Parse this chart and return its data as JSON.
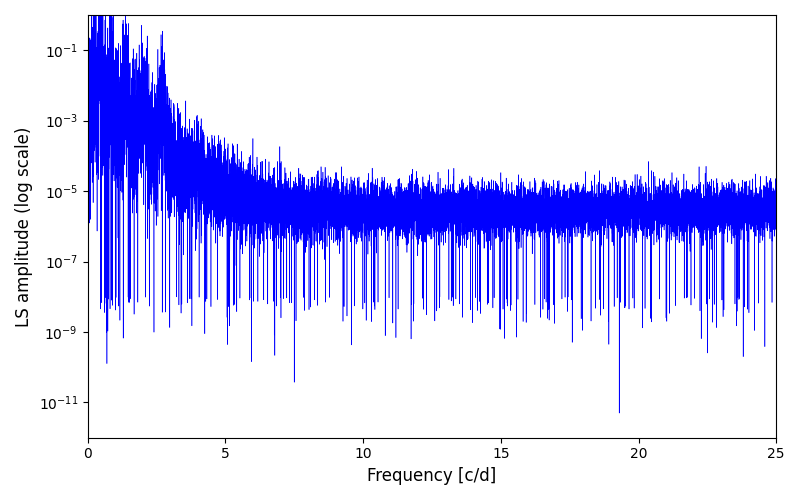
{
  "title": "",
  "xlabel": "Frequency [c/d]",
  "ylabel": "LS amplitude (log scale)",
  "line_color": "#0000ff",
  "xlim": [
    0,
    25
  ],
  "ylim_log": [
    -12,
    0
  ],
  "freq_max": 25.0,
  "n_points": 15000,
  "seed": 12345,
  "noise_floor_high": 3e-06,
  "noise_floor_low": 5e-06,
  "decay_rate": 1.2,
  "yticks": [
    1e-11,
    1e-09,
    1e-07,
    1e-05,
    0.001,
    0.1
  ],
  "xticks": [
    0,
    5,
    10,
    15,
    20,
    25
  ],
  "background_color": "#ffffff",
  "figwidth": 8.0,
  "figheight": 5.0,
  "dpi": 100
}
